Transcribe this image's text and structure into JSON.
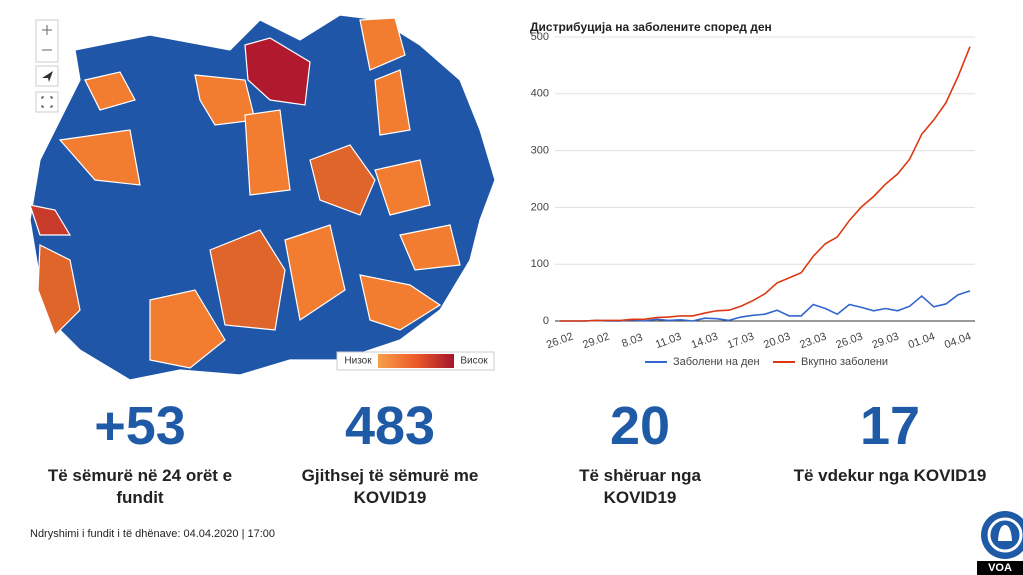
{
  "chart_data": {
    "type": "line",
    "title": "Дистрибуција на заболените според ден",
    "categories": [
      "26.02",
      null,
      null,
      "29.02",
      null,
      null,
      "8.03",
      null,
      null,
      "11.03",
      null,
      null,
      "14.03",
      null,
      null,
      "17.03",
      null,
      null,
      "20.03",
      null,
      null,
      "23.03",
      null,
      null,
      "26.03",
      null,
      null,
      "29.03",
      null,
      null,
      "01.04",
      null,
      null,
      "04.04",
      null
    ],
    "series": [
      {
        "name": "Заболени на ден",
        "color": "#3366cc",
        "values": [
          0,
          0,
          0,
          1,
          0,
          0,
          2,
          0,
          3,
          1,
          2,
          0,
          5,
          4,
          1,
          7,
          10,
          12,
          19,
          9,
          9,
          29,
          22,
          12,
          29,
          24,
          18,
          22,
          18,
          26,
          44,
          25,
          30,
          46,
          53
        ]
      },
      {
        "name": "Вкупно заболени",
        "color": "#dc3912",
        "values": [
          0,
          0,
          0,
          1,
          1,
          1,
          3,
          3,
          6,
          7,
          9,
          9,
          14,
          18,
          19,
          26,
          36,
          48,
          67,
          76,
          85,
          114,
          136,
          148,
          177,
          201,
          219,
          241,
          259,
          285,
          329,
          354,
          384,
          430,
          483
        ]
      }
    ],
    "ylim": [
      0,
      500
    ],
    "yticks": [
      0,
      100,
      200,
      300,
      400,
      500
    ],
    "grid": true
  },
  "map": {
    "legend_low": "Низок",
    "legend_high": "Висок"
  },
  "stats": [
    {
      "value": "+53",
      "label": "Të sëmurë në 24 orët e fundit"
    },
    {
      "value": "483",
      "label": "Gjithsej të sëmurë me KOVID19"
    },
    {
      "value": "20",
      "label": "Të shëruar nga KOVID19"
    },
    {
      "value": "17",
      "label": "Të vdekur nga KOVID19"
    }
  ],
  "footer": "Ndryshimi i fundit i të dhënave: 04.04.2020 | 17:00",
  "logo": "VOA"
}
